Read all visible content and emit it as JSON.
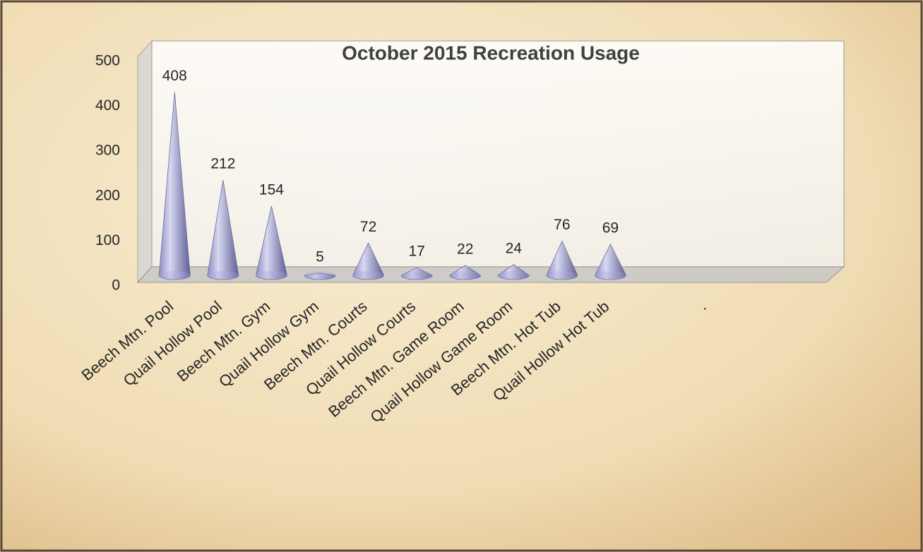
{
  "chart_data": {
    "type": "cone",
    "title": "October 2015  Recreation Usage",
    "categories": [
      "Beech Mtn. Pool",
      "Quail Hollow Pool",
      "Beech Mtn. Gym",
      "Quail Hollow Gym",
      "Beech Mtn. Courts",
      "Quail Hollow Courts",
      "Beech Mtn. Game Room",
      "Quail Hollow Game Room",
      "Beech Mtn. Hot Tub",
      "Quail Hollow Hot Tub",
      null,
      ".",
      null,
      null
    ],
    "values": [
      408,
      212,
      154,
      5,
      72,
      17,
      22,
      24,
      76,
      69,
      null,
      null,
      null,
      null
    ],
    "color": "#a9a9d6",
    "ylim": [
      0,
      500
    ],
    "yticks": [
      0,
      100,
      200,
      300,
      400,
      500
    ],
    "grid": false
  }
}
